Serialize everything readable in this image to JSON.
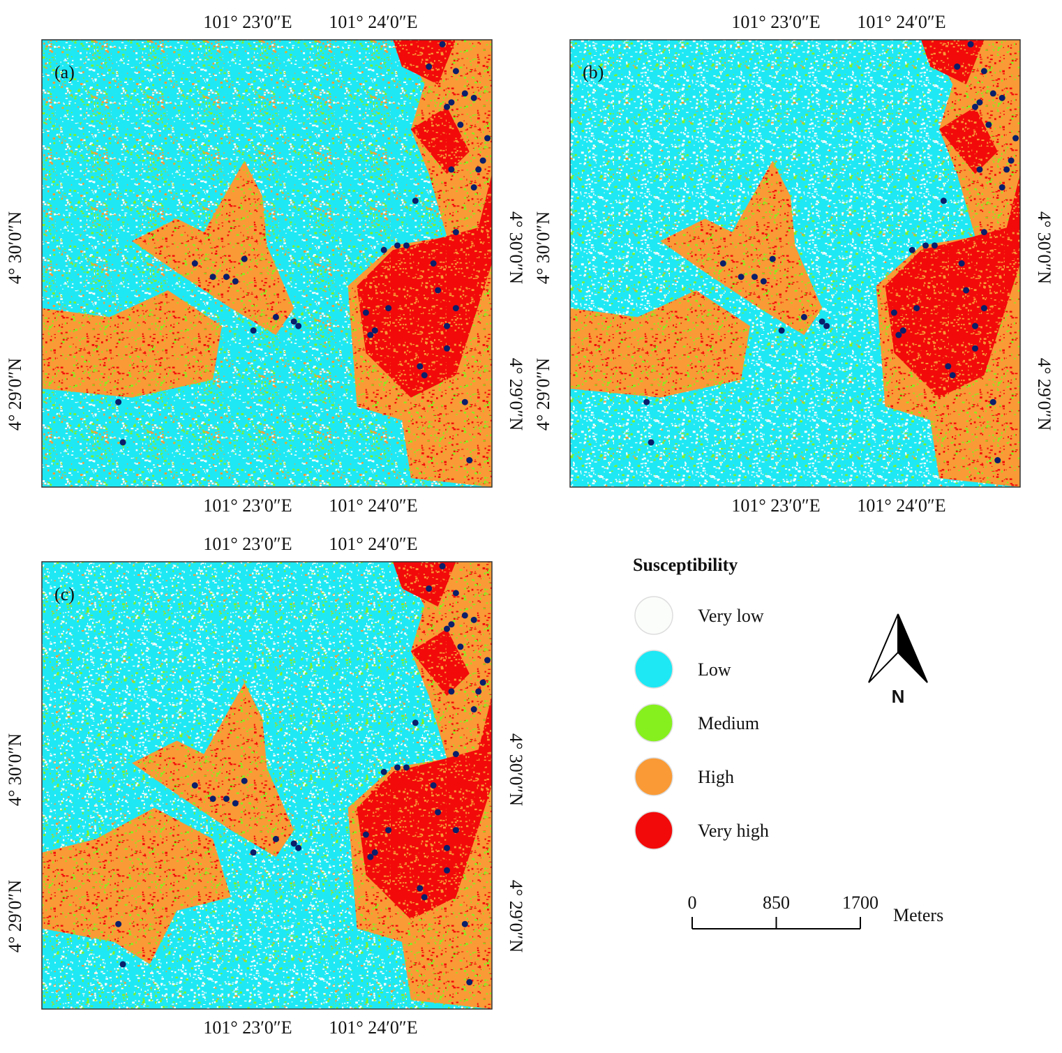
{
  "panels": [
    {
      "label": "(a)",
      "lon_labels": [
        "101° 23′0″E",
        "101° 24′0″E"
      ],
      "lat_labels": [
        "4° 30′0″N",
        "4° 29′0″N"
      ]
    },
    {
      "label": "(b)",
      "lon_labels": [
        "101° 23′0″E",
        "101° 24′0″E"
      ],
      "lat_labels": [
        "4° 30′0″N",
        "4° 29′0″N"
      ]
    },
    {
      "label": "(c)",
      "lon_labels": [
        "101° 23′0″E",
        "101° 24′0″E"
      ],
      "lat_labels": [
        "4° 30′0″N",
        "4° 29′0″N"
      ]
    }
  ],
  "legend": {
    "title": "Susceptibility",
    "items": [
      {
        "label": "Very low",
        "color": "#fbfdfb"
      },
      {
        "label": "Low",
        "color": "#1ee8f4"
      },
      {
        "label": "Medium",
        "color": "#86f01e"
      },
      {
        "label": "High",
        "color": "#f99a36"
      },
      {
        "label": "Very high",
        "color": "#f20a0a"
      }
    ]
  },
  "north_arrow": {
    "label": "N"
  },
  "scale_bar": {
    "ticks": [
      0,
      850,
      1700
    ],
    "unit": "Meters"
  }
}
